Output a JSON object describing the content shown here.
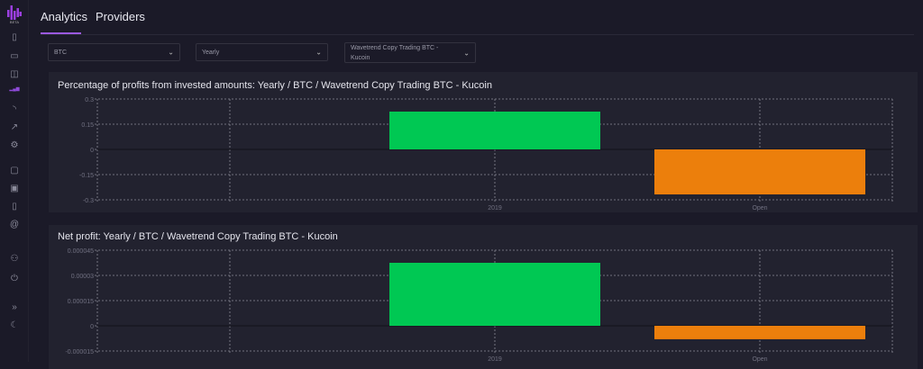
{
  "sidebar": {
    "logo_text": "BETA",
    "icons": [
      "clipboard-icon",
      "monitor-icon",
      "book-open-icon",
      "analytics-icon",
      "rss-icon",
      "trending-icon",
      "gear-icon",
      "chat-icon",
      "calendar-icon",
      "book-icon",
      "at-icon",
      "users-icon",
      "power-icon",
      "expand-icon",
      "moon-icon"
    ],
    "active": "analytics-icon"
  },
  "tabs": [
    {
      "label": "Analytics",
      "active": true
    },
    {
      "label": "Providers",
      "active": false
    }
  ],
  "filters": {
    "coin": "BTC",
    "period": "Yearly",
    "provider": "Wavetrend Copy Trading BTC - Kucoin"
  },
  "colors": {
    "accent": "#9b59e0",
    "positive": "#00c853",
    "negative": "#ec7f0c",
    "panel": "#22222f",
    "background": "#1b1a28"
  },
  "chart_data": [
    {
      "type": "bar",
      "title": "Percentage of profits from invested amounts: Yearly / BTC / Wavetrend Copy Trading BTC - Kucoin",
      "categories": [
        "2019",
        "Open"
      ],
      "values": [
        0.225,
        -0.268
      ],
      "yticks": [
        "0.3",
        "0.15",
        "0",
        "-0.15",
        "-0.3"
      ],
      "ylim": [
        -0.3,
        0.3
      ],
      "grid": true
    },
    {
      "type": "bar",
      "title": "Net profit: Yearly / BTC / Wavetrend Copy Trading BTC - Kucoin",
      "categories": [
        "2019",
        "Open"
      ],
      "values": [
        3.75e-05,
        -8e-06
      ],
      "yticks": [
        "0.000045",
        "0.00003",
        "0.000015",
        "0",
        "-0.000015"
      ],
      "ylim": [
        -1.5e-05,
        4.5e-05
      ],
      "grid": true
    }
  ]
}
